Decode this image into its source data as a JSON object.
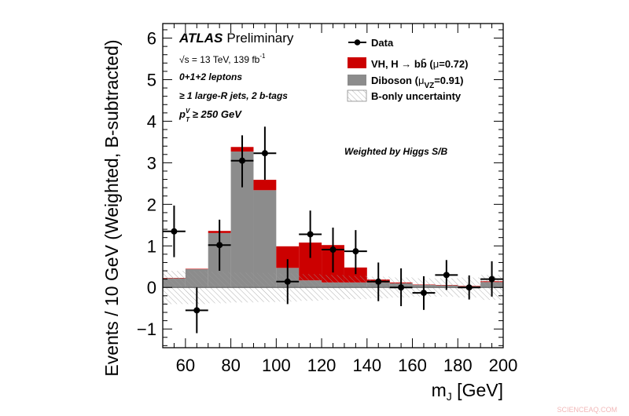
{
  "chart_data": {
    "type": "bar",
    "stacked": true,
    "xlabel_main": "m",
    "xlabel_sub": "J",
    "xlabel_unit": " [GeV]",
    "ylabel": "Events / 10 GeV (Weighted, B-subtracted)",
    "xlim": [
      50,
      200
    ],
    "ylim": [
      -1.45,
      6.35
    ],
    "xticks": [
      "60",
      "80",
      "100",
      "120",
      "140",
      "160",
      "180",
      "200"
    ],
    "yticks": [
      "−1",
      "0",
      "1",
      "2",
      "3",
      "4",
      "5",
      "6"
    ],
    "bin_edges": [
      50,
      60,
      70,
      80,
      90,
      100,
      110,
      120,
      130,
      140,
      150,
      160,
      170,
      180,
      190,
      200
    ],
    "series": [
      {
        "name": "Diboson",
        "color": "#8c8c8c",
        "values": [
          0.22,
          0.44,
          1.31,
          3.27,
          2.34,
          0.47,
          0.17,
          0.12,
          0.12,
          0.12,
          0.1,
          0.06,
          0.05,
          0.03,
          0.13
        ]
      },
      {
        "name": "VH, H → bb̄",
        "color": "#cc0000",
        "values": [
          0.01,
          0.01,
          0.05,
          0.11,
          0.25,
          0.52,
          0.91,
          0.9,
          0.36,
          0.07,
          0.02,
          0.01,
          0.01,
          0.01,
          0.02
        ]
      }
    ],
    "uncertainty": {
      "name": "B-only uncertainty",
      "half_width": [
        0.4,
        0.4,
        0.38,
        0.36,
        0.35,
        0.34,
        0.32,
        0.3,
        0.28,
        0.26,
        0.24,
        0.22,
        0.22,
        0.24,
        0.3
      ]
    },
    "data": {
      "name": "Data",
      "x": [
        55,
        65,
        75,
        85,
        95,
        105,
        115,
        125,
        135,
        145,
        155,
        165,
        175,
        185,
        195
      ],
      "y": [
        1.35,
        -0.55,
        1.02,
        3.05,
        3.23,
        0.14,
        1.28,
        0.91,
        0.87,
        0.14,
        0.0,
        -0.13,
        0.3,
        0.0,
        0.2
      ],
      "err_up": [
        0.62,
        0.55,
        0.61,
        0.61,
        0.64,
        0.54,
        0.57,
        0.53,
        0.51,
        0.46,
        0.46,
        0.4,
        0.36,
        0.29,
        0.43
      ],
      "err_down": [
        0.62,
        0.55,
        0.62,
        0.64,
        0.64,
        0.54,
        0.57,
        0.55,
        0.55,
        0.47,
        0.45,
        0.41,
        0.36,
        0.29,
        0.42
      ]
    },
    "legend": {
      "placement": "top-right",
      "entries": [
        {
          "label": "Data"
        },
        {
          "label_main": "VH, H ",
          "label_arrow": "→",
          "label_bb": " bb̄ (",
          "label_mu": "μ",
          "label_val": "=0.72)"
        },
        {
          "label_main": "Diboson (",
          "label_mu": "μ",
          "label_sub": "VZ",
          "label_val": "=0.91)"
        },
        {
          "label": "B-only uncertainty"
        }
      ]
    },
    "annotations": {
      "atlas": "ATLAS",
      "preliminary": "Preliminary",
      "energy": "√s = 13 TeV, 139 fb",
      "energy_sup": "-1",
      "leptons": "0+1+2 leptons",
      "jets": "≥ 1 large-R jets, 2 b-tags",
      "ptv_p": "p",
      "ptv_sup": "V",
      "ptv_sub": "T",
      "ptv_rest": " ≥ 250 GeV",
      "weighted": "Weighted by Higgs S/B"
    },
    "grid": false
  },
  "watermark": "SCIENCEAQ.COM"
}
